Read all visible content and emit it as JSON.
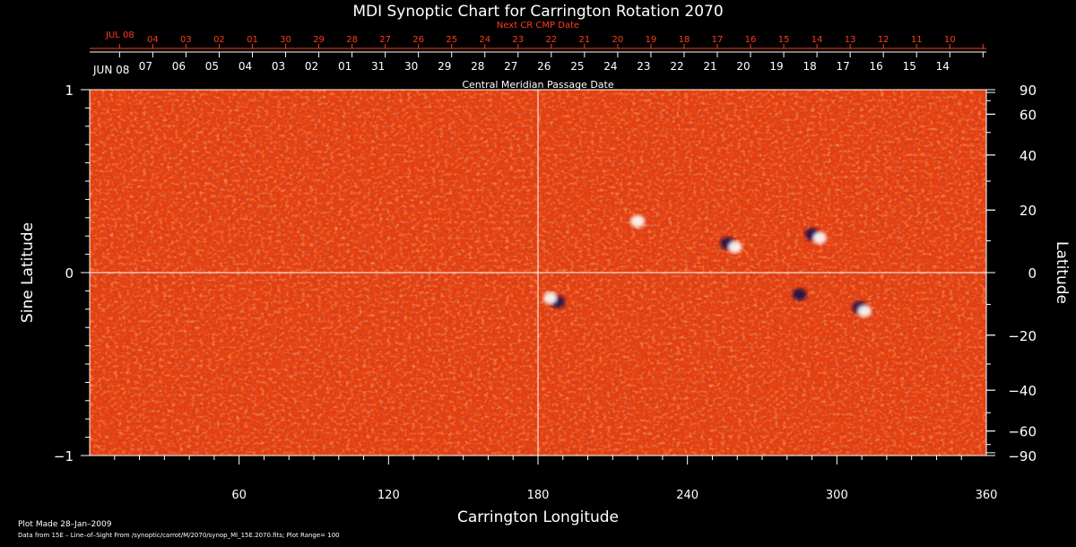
{
  "chart_data": {
    "type": "heatmap",
    "title": "MDI Synoptic Chart for Carrington Rotation 2070",
    "xlabel": "Carrington Longitude",
    "ylabel_left": "Sine Latitude",
    "ylabel_right": "Latitude",
    "xlim": [
      0,
      360
    ],
    "ylim": [
      -1,
      1
    ],
    "x_ticks": [
      60,
      120,
      180,
      240,
      300,
      360
    ],
    "y_ticks_left": [
      {
        "value": 1,
        "label": "1"
      },
      {
        "value": 0,
        "label": "0"
      },
      {
        "value": -1,
        "label": "−1"
      }
    ],
    "y_ticks_right": [
      {
        "deg": 90,
        "label": "90"
      },
      {
        "deg": 60,
        "label": "60"
      },
      {
        "deg": 40,
        "label": "40"
      },
      {
        "deg": 20,
        "label": "20"
      },
      {
        "deg": 0,
        "label": "0"
      },
      {
        "deg": -20,
        "label": "−20"
      },
      {
        "deg": -40,
        "label": "−40"
      },
      {
        "deg": -60,
        "label": "−60"
      },
      {
        "deg": -90,
        "label": "−90"
      }
    ],
    "cmp_axis_label": "Central Meridian Passage Date",
    "cmp_start_label": "JUN 08",
    "cmp_dates": [
      "07",
      "06",
      "05",
      "04",
      "03",
      "02",
      "01",
      "31",
      "30",
      "29",
      "28",
      "27",
      "26",
      "25",
      "24",
      "23",
      "22",
      "21",
      "20",
      "19",
      "18",
      "17",
      "16",
      "15",
      "14"
    ],
    "next_cr_axis_label": "Next CR CMP Date",
    "next_cr_start_label": "JUL 08",
    "next_cr_dates": [
      "04",
      "03",
      "02",
      "01",
      "30",
      "29",
      "28",
      "27",
      "26",
      "25",
      "24",
      "23",
      "22",
      "21",
      "20",
      "19",
      "18",
      "17",
      "16",
      "15",
      "14",
      "13",
      "12",
      "11",
      "10"
    ],
    "active_regions": [
      {
        "lon": 256,
        "sinlat": 0.16,
        "polarity": "negative"
      },
      {
        "lon": 259,
        "sinlat": 0.14,
        "polarity": "positive"
      },
      {
        "lon": 290,
        "sinlat": 0.21,
        "polarity": "negative"
      },
      {
        "lon": 293,
        "sinlat": 0.19,
        "polarity": "positive"
      },
      {
        "lon": 188,
        "sinlat": -0.16,
        "polarity": "negative"
      },
      {
        "lon": 185,
        "sinlat": -0.14,
        "polarity": "positive"
      },
      {
        "lon": 285,
        "sinlat": -0.12,
        "polarity": "negative"
      },
      {
        "lon": 309,
        "sinlat": -0.19,
        "polarity": "negative"
      },
      {
        "lon": 311,
        "sinlat": -0.21,
        "polarity": "positive"
      },
      {
        "lon": 220,
        "sinlat": 0.28,
        "polarity": "positive"
      }
    ],
    "grid": "crosshair at 180 longitude and 0 latitude",
    "colors": {
      "background": "#000000",
      "map_base": "#e8400e",
      "positive_field": "#ffffff",
      "negative_field": "#1a0a4a",
      "crosshair": "#ffffff",
      "next_cr_text": "#ff3b1f"
    }
  },
  "footer": {
    "plot_made": "Plot Made 28–Jan–2009",
    "data_source": "Data from 15E – Line–of–Sight From /synoptic/carrot/M/2070/synop_Ml_15E.2070.fits; Plot Range= 100"
  }
}
